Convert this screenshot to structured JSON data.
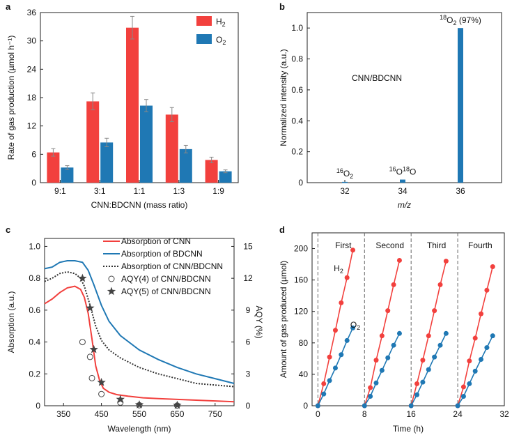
{
  "chart_data": [
    {
      "panel": "a",
      "type": "bar",
      "xlabel": "CNN:BDCNN (mass ratio)",
      "ylabel": "Rate of gas production (µmol h⁻¹)",
      "ylim": [
        0,
        36
      ],
      "yticks": [
        0,
        6,
        12,
        18,
        24,
        30,
        36
      ],
      "categories": [
        "9:1",
        "3:1",
        "1:1",
        "1:3",
        "1:9"
      ],
      "series": [
        {
          "name": "H₂",
          "color": "#f2403d",
          "values": [
            6.4,
            17.2,
            32.8,
            14.4,
            4.8
          ],
          "errors": [
            0.8,
            1.8,
            2.4,
            1.5,
            0.6
          ]
        },
        {
          "name": "O₂",
          "color": "#1f78b4",
          "values": [
            3.2,
            8.5,
            16.3,
            7.1,
            2.4
          ],
          "errors": [
            0.4,
            0.9,
            1.3,
            0.8,
            0.3
          ]
        }
      ]
    },
    {
      "panel": "b",
      "type": "bar",
      "xlabel": "m/z",
      "ylabel": "Normalized intensity (a.u.)",
      "ylim": [
        0,
        1.1
      ],
      "yticks": [
        "0",
        "0.2",
        "0.4",
        "0.6",
        "0.8",
        "1.0"
      ],
      "xticks": [
        "32",
        "34",
        "36"
      ],
      "x": [
        32,
        34,
        36
      ],
      "values": [
        0.005,
        0.02,
        1.0
      ],
      "color": "#1f78b4",
      "annotation": "CNN/BDCNN",
      "peak_labels": [
        {
          "sup": "16",
          "base": "O",
          "sub": "2",
          "extra": ""
        },
        {
          "sup": "16",
          "base": "O",
          "sup2": "18",
          "base2": "O"
        },
        {
          "sup": "18",
          "base": "O",
          "sub": "2",
          "extra": " (97%)"
        }
      ]
    },
    {
      "panel": "c",
      "type": "line",
      "xlabel": "Wavelength (nm)",
      "ylabel": "Absorption (a.u.)",
      "ylabel_right": "AQY (%)",
      "xlim": [
        300,
        800
      ],
      "ylim": [
        0,
        1.05
      ],
      "ylim_right": [
        0,
        15.75
      ],
      "xticks": [
        350,
        450,
        550,
        650,
        750
      ],
      "yticks": [
        "0",
        "0.2",
        "0.4",
        "0.6",
        "0.8",
        "1.0"
      ],
      "yticks_right": [
        "0",
        "3",
        "6",
        "9",
        "12",
        "15"
      ],
      "series": [
        {
          "name": "Absorption of CNN",
          "color": "#f2403d",
          "style": "solid",
          "x": [
            300,
            320,
            340,
            360,
            380,
            395,
            405,
            415,
            425,
            435,
            445,
            455,
            470,
            490,
            520,
            560,
            600,
            650,
            700,
            750,
            800
          ],
          "y": [
            0.64,
            0.67,
            0.71,
            0.74,
            0.75,
            0.73,
            0.68,
            0.58,
            0.42,
            0.25,
            0.16,
            0.11,
            0.085,
            0.07,
            0.06,
            0.05,
            0.045,
            0.04,
            0.035,
            0.03,
            0.025
          ]
        },
        {
          "name": "Absorption of BDCNN",
          "color": "#1f78b4",
          "style": "solid",
          "x": [
            300,
            320,
            340,
            360,
            380,
            400,
            415,
            430,
            450,
            470,
            500,
            550,
            600,
            650,
            700,
            750,
            800
          ],
          "y": [
            0.86,
            0.87,
            0.9,
            0.91,
            0.91,
            0.9,
            0.85,
            0.76,
            0.63,
            0.53,
            0.44,
            0.35,
            0.29,
            0.24,
            0.2,
            0.17,
            0.14
          ]
        },
        {
          "name": "Absorption of CNN/BDCNN",
          "color": "#333333",
          "style": "dotted",
          "x": [
            300,
            320,
            340,
            360,
            380,
            395,
            405,
            420,
            435,
            450,
            470,
            500,
            550,
            600,
            650,
            700,
            750,
            800
          ],
          "y": [
            0.78,
            0.8,
            0.83,
            0.84,
            0.83,
            0.8,
            0.75,
            0.63,
            0.5,
            0.41,
            0.35,
            0.3,
            0.24,
            0.2,
            0.17,
            0.14,
            0.13,
            0.12
          ]
        }
      ],
      "markers": [
        {
          "name": "AQY(4) of CNN/BDCNN",
          "shape": "circle",
          "x": [
            400,
            420,
            425,
            450,
            500,
            550,
            650
          ],
          "y": [
            6.0,
            4.6,
            2.6,
            1.1,
            0.3,
            0.05,
            0.02
          ]
        },
        {
          "name": "AQY(5) of CNN/BDCNN",
          "shape": "star",
          "x": [
            400,
            420,
            430,
            450,
            500,
            550,
            650
          ],
          "y": [
            12.0,
            9.2,
            5.3,
            2.2,
            0.6,
            0.1,
            0.05
          ]
        }
      ]
    },
    {
      "panel": "d",
      "type": "scatter",
      "xlabel": "Time (h)",
      "ylabel": "Amount of gas produced (µmol)",
      "xlim": [
        -1,
        32
      ],
      "ylim": [
        0,
        220
      ],
      "xticks": [
        0,
        8,
        16,
        24,
        32
      ],
      "yticks": [
        0,
        40,
        80,
        120,
        160,
        200
      ],
      "cycles": [
        "First",
        "Second",
        "Third",
        "Fourth"
      ],
      "cycle_bounds": [
        0,
        8,
        16,
        24
      ],
      "series_labels": [
        {
          "base": "H",
          "sub": "2"
        },
        {
          "base": "O",
          "sub": "2"
        }
      ],
      "series": [
        {
          "name": "H₂",
          "color": "#f2403d",
          "x": [
            0,
            1,
            2,
            3,
            4,
            5,
            6,
            8,
            9,
            10,
            11,
            12,
            13,
            14,
            16,
            17,
            18,
            19,
            20,
            21,
            22,
            24,
            25,
            26,
            27,
            28,
            29,
            30
          ],
          "y": [
            0,
            28,
            62,
            96,
            131,
            163,
            198,
            0,
            23,
            58,
            89,
            121,
            154,
            185,
            0,
            28,
            58,
            89,
            121,
            154,
            184,
            0,
            24,
            57,
            86,
            117,
            147,
            177
          ]
        },
        {
          "name": "O₂",
          "color": "#1f78b4",
          "x": [
            0,
            1,
            2,
            3,
            4,
            5,
            6,
            8,
            9,
            10,
            11,
            12,
            13,
            14,
            16,
            17,
            18,
            19,
            20,
            21,
            22,
            24,
            25,
            26,
            27,
            28,
            29,
            30
          ],
          "y": [
            0,
            15,
            32,
            48,
            65,
            83,
            99,
            0,
            12,
            29,
            45,
            61,
            77,
            92,
            0,
            14,
            30,
            46,
            62,
            77,
            92,
            0,
            12,
            28,
            44,
            59,
            74,
            89
          ]
        }
      ]
    }
  ]
}
